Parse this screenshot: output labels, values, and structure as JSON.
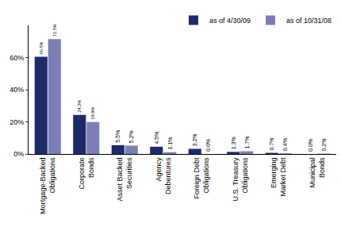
{
  "chart_data": {
    "type": "bar",
    "categories": [
      "Mortgage-Backed Obligations",
      "Corporate Bonds",
      "Asset Backed Securities",
      "Agency Debentures",
      "Foreign Debt Obligations",
      "U.S. Treasury Obligations",
      "Emerging Market Debt",
      "Municipal Bonds"
    ],
    "series": [
      {
        "name": "as of 4/30/09",
        "color": "#1f2a6b",
        "values": [
          60.5,
          24.3,
          5.5,
          4.5,
          3.2,
          1.3,
          0.7,
          0.0
        ],
        "value_labels": [
          "60.5%",
          "24.3%",
          "5.5%",
          "4.5%",
          "3.2%",
          "1.3%",
          "0.7%",
          "0.0%"
        ]
      },
      {
        "name": "as of 10/31/08",
        "color": "#7b7fb5",
        "values": [
          71.5,
          19.9,
          5.2,
          1.1,
          0.0,
          1.7,
          0.4,
          0.2
        ],
        "value_labels": [
          "71.5%",
          "19.9%",
          "5.2%",
          "1.1%",
          "0.0%",
          "1.7%",
          "0.4%",
          "0.2%"
        ]
      }
    ],
    "ylim": [
      0,
      80
    ],
    "yticks": [
      {
        "value": 0,
        "label": "0%"
      },
      {
        "value": 20,
        "label": "20%"
      },
      {
        "value": 40,
        "label": "40%"
      },
      {
        "value": 60,
        "label": "60%"
      }
    ],
    "grid": false,
    "legend": "top right",
    "data_labels": true
  }
}
